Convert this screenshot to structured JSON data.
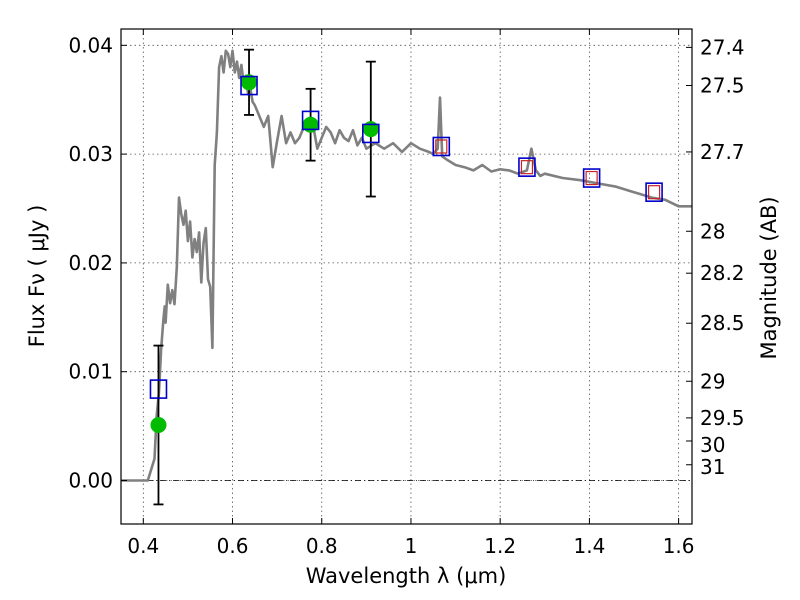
{
  "chart_data": {
    "type": "scatter",
    "title": "",
    "xlabel": "Wavelength  λ (μm)",
    "ylabel": "Flux  Fν  ( μJy )",
    "y2label": "Magnitude (AB)",
    "xlim": [
      0.35,
      1.63
    ],
    "ylim": [
      -0.004,
      0.0415
    ],
    "x_ticks": [
      0.4,
      0.6,
      0.8,
      1.0,
      1.2,
      1.4,
      1.6
    ],
    "x_tick_labels": [
      "0.4",
      "0.6",
      "0.8",
      "1",
      "1.2",
      "1.4",
      "1.6"
    ],
    "y_ticks": [
      0.0,
      0.01,
      0.02,
      0.03,
      0.04
    ],
    "y_tick_labels": [
      "0.00",
      "0.01",
      "0.02",
      "0.03",
      "0.04"
    ],
    "magnitude_ticks": [
      "27.4",
      "27.5",
      "27.7",
      "28",
      "28.2",
      "28.5",
      "29",
      "29.5",
      "30",
      "31"
    ],
    "grid": true,
    "colors": {
      "model": "#808080",
      "observed_marker": "#00bb00",
      "model_marker": "#0000cc",
      "model_marker_inner": "#cc2222",
      "errorbar": "#000000"
    },
    "model_spectrum": {
      "x": [
        0.35,
        0.41,
        0.425,
        0.43,
        0.435,
        0.44,
        0.445,
        0.448,
        0.45,
        0.455,
        0.46,
        0.465,
        0.47,
        0.475,
        0.48,
        0.485,
        0.49,
        0.495,
        0.5,
        0.505,
        0.51,
        0.515,
        0.52,
        0.525,
        0.53,
        0.535,
        0.54,
        0.545,
        0.55,
        0.555,
        0.56,
        0.565,
        0.57,
        0.575,
        0.58,
        0.585,
        0.59,
        0.595,
        0.6,
        0.605,
        0.61,
        0.615,
        0.62,
        0.625,
        0.63,
        0.635,
        0.64,
        0.645,
        0.65,
        0.66,
        0.67,
        0.68,
        0.69,
        0.7,
        0.71,
        0.72,
        0.73,
        0.74,
        0.75,
        0.76,
        0.77,
        0.78,
        0.79,
        0.8,
        0.81,
        0.82,
        0.83,
        0.84,
        0.85,
        0.86,
        0.87,
        0.88,
        0.89,
        0.9,
        0.92,
        0.94,
        0.96,
        0.98,
        1.0,
        1.02,
        1.04,
        1.05,
        1.06,
        1.065,
        1.07,
        1.08,
        1.1,
        1.12,
        1.14,
        1.16,
        1.18,
        1.2,
        1.22,
        1.24,
        1.26,
        1.27,
        1.28,
        1.29,
        1.3,
        1.34,
        1.38,
        1.42,
        1.46,
        1.5,
        1.54,
        1.57,
        1.6,
        1.63
      ],
      "y": [
        0.0,
        0.0,
        0.002,
        0.006,
        0.008,
        0.012,
        0.0148,
        0.016,
        0.0145,
        0.018,
        0.0163,
        0.0175,
        0.0162,
        0.0196,
        0.026,
        0.0245,
        0.0235,
        0.0248,
        0.022,
        0.0238,
        0.0205,
        0.0222,
        0.021,
        0.0228,
        0.0182,
        0.0218,
        0.0232,
        0.0185,
        0.0178,
        0.0122,
        0.029,
        0.032,
        0.038,
        0.039,
        0.0375,
        0.0395,
        0.0392,
        0.038,
        0.0395,
        0.0375,
        0.0385,
        0.037,
        0.0382,
        0.0365,
        0.0372,
        0.0355,
        0.036,
        0.0348,
        0.0345,
        0.0335,
        0.0325,
        0.0335,
        0.0288,
        0.0312,
        0.0335,
        0.031,
        0.032,
        0.031,
        0.0315,
        0.0325,
        0.0332,
        0.0328,
        0.0305,
        0.0315,
        0.0325,
        0.032,
        0.031,
        0.0322,
        0.0315,
        0.0312,
        0.0322,
        0.0308,
        0.0315,
        0.0305,
        0.031,
        0.0305,
        0.031,
        0.0302,
        0.031,
        0.0305,
        0.0302,
        0.03,
        0.0305,
        0.0352,
        0.0298,
        0.0295,
        0.029,
        0.0288,
        0.0285,
        0.029,
        0.0284,
        0.0286,
        0.0285,
        0.0282,
        0.0285,
        0.0305,
        0.0285,
        0.028,
        0.0282,
        0.0278,
        0.0276,
        0.0273,
        0.027,
        0.0265,
        0.026,
        0.0258,
        0.0252,
        0.0252
      ]
    },
    "observed_points": [
      {
        "x": 0.434,
        "y": 0.0051,
        "yerr": 0.0073
      },
      {
        "x": 0.637,
        "y": 0.0366,
        "yerr": 0.003
      },
      {
        "x": 0.775,
        "y": 0.0327,
        "yerr": 0.0033
      },
      {
        "x": 0.91,
        "y": 0.0323,
        "yerr": 0.0062
      }
    ],
    "model_photometry": [
      {
        "x": 0.434,
        "y": 0.0084
      },
      {
        "x": 0.637,
        "y": 0.0363
      },
      {
        "x": 0.775,
        "y": 0.0331
      },
      {
        "x": 0.91,
        "y": 0.0319
      },
      {
        "x": 1.068,
        "y": 0.0307
      },
      {
        "x": 1.26,
        "y": 0.0288
      },
      {
        "x": 1.405,
        "y": 0.0278
      },
      {
        "x": 1.545,
        "y": 0.0265
      }
    ]
  }
}
